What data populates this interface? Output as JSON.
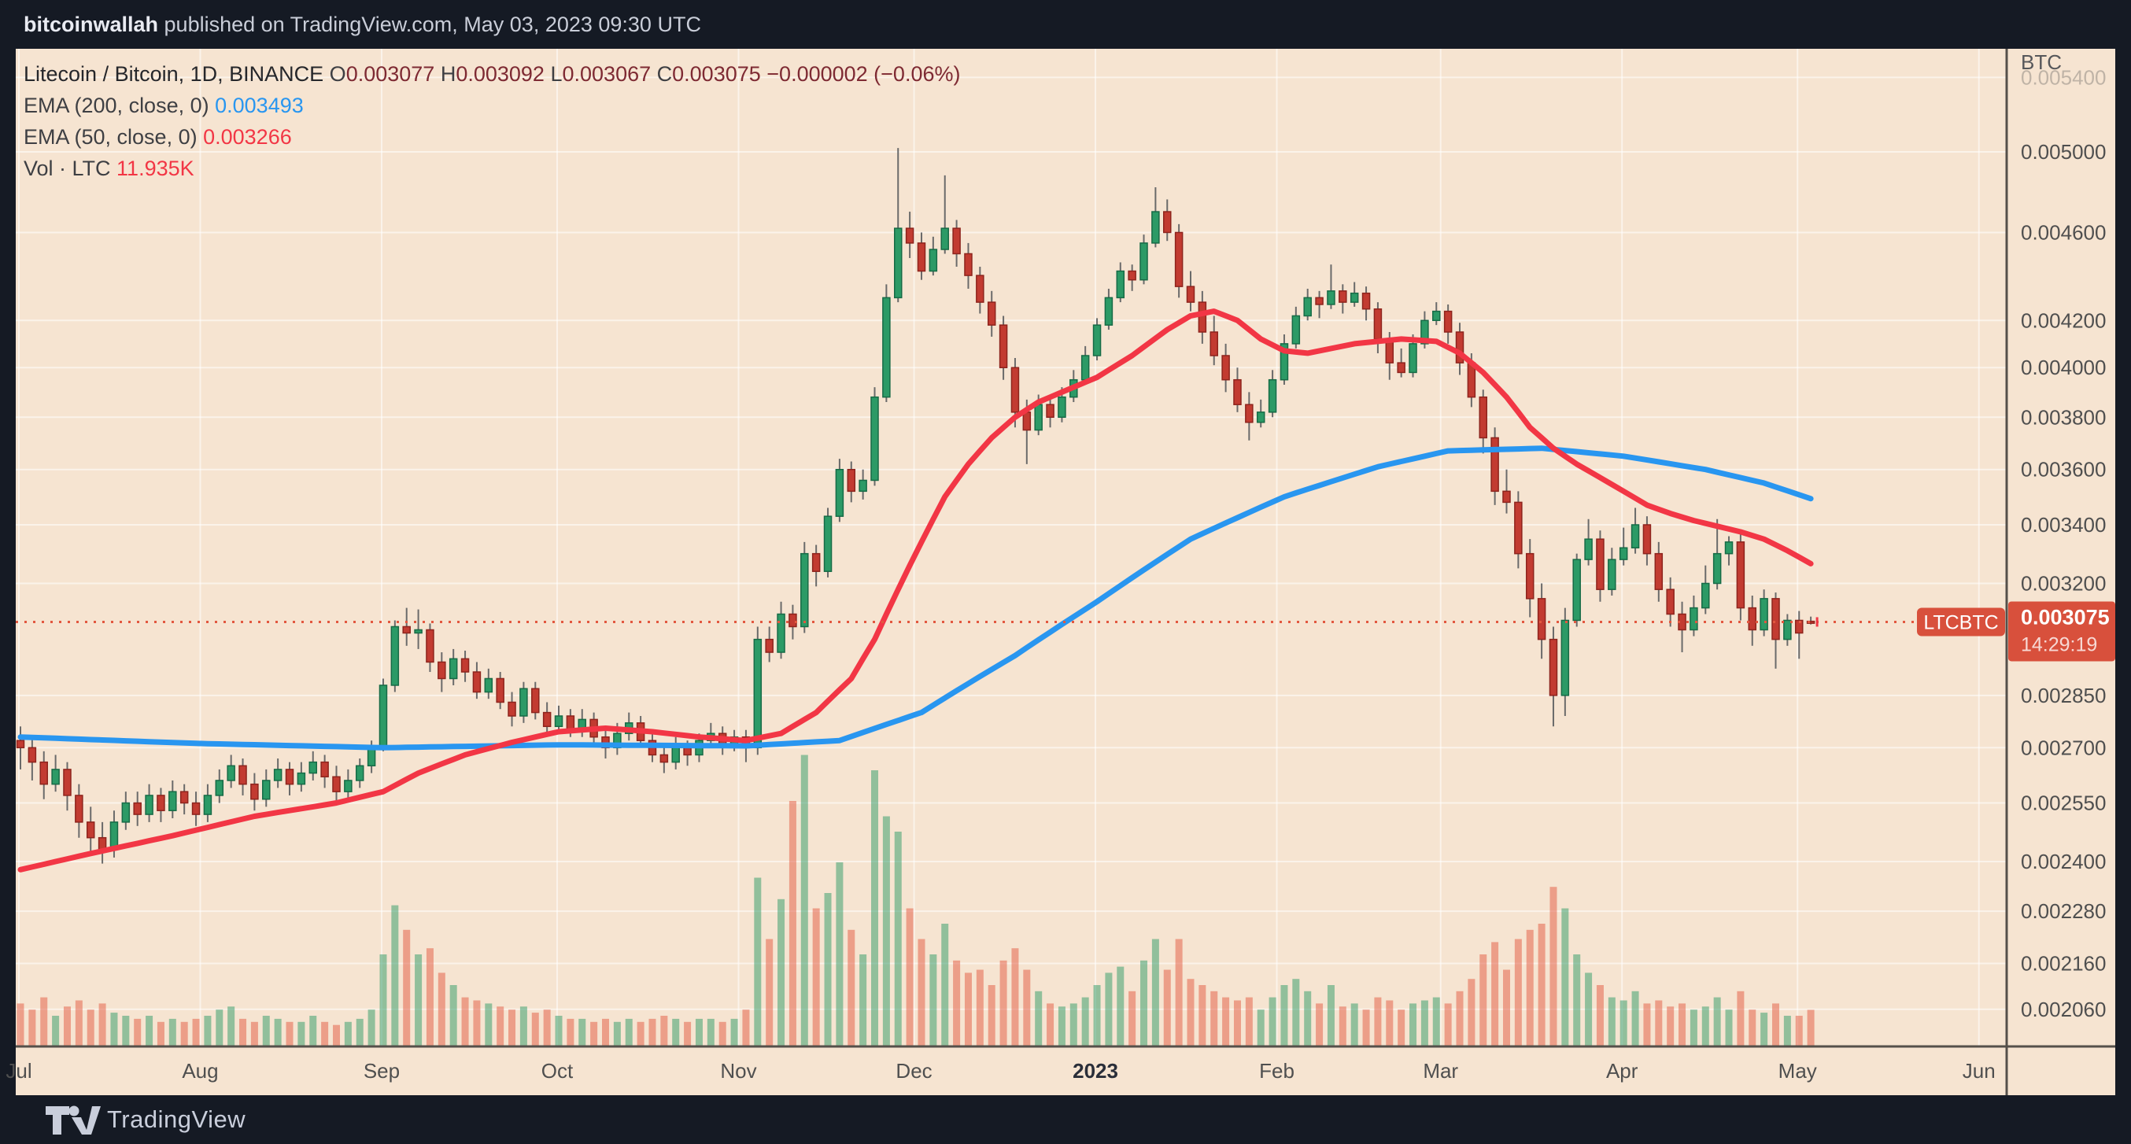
{
  "header": {
    "username": "bitcoinwallah",
    "rest": " published on TradingView.com, May 03, 2023 09:30 UTC"
  },
  "legend": {
    "title": "Litecoin / Bitcoin, 1D, BINANCE",
    "o_letter": "O",
    "o_value": "0.003077",
    "h_letter": "H",
    "h_value": "0.003092",
    "l_letter": "L",
    "l_value": "0.003067",
    "c_letter": "C",
    "c_value": "0.003075",
    "change": "−0.000002 (−0.06%)",
    "ema200_label": "EMA (200, close, 0)",
    "ema200_value": "0.003493",
    "ema50_label": "EMA (50, close, 0)",
    "ema50_value": "0.003266",
    "vol_label": "Vol · LTC",
    "vol_value": "11.935K"
  },
  "price_axis": {
    "currency": "BTC",
    "faded_top_tick": 5400,
    "ticks": [
      5000,
      4600,
      4200,
      4000,
      3800,
      3600,
      3400,
      3200,
      2850,
      2700,
      2550,
      2400,
      2280,
      2160,
      2060
    ]
  },
  "time_axis": {
    "months": [
      {
        "label": "Jul",
        "idx": 0,
        "year": false
      },
      {
        "label": "Aug",
        "idx": 15.5,
        "year": false
      },
      {
        "label": "Sep",
        "idx": 31,
        "year": false
      },
      {
        "label": "Oct",
        "idx": 46,
        "year": false
      },
      {
        "label": "Nov",
        "idx": 61.5,
        "year": false
      },
      {
        "label": "Dec",
        "idx": 76.5,
        "year": false
      },
      {
        "label": "2023",
        "idx": 92,
        "year": true
      },
      {
        "label": "Feb",
        "idx": 107.5,
        "year": false
      },
      {
        "label": "Mar",
        "idx": 121.5,
        "year": false
      },
      {
        "label": "Apr",
        "idx": 137,
        "year": false
      },
      {
        "label": "May",
        "idx": 152,
        "year": false
      },
      {
        "label": "Jun",
        "idx": 167.5,
        "year": false
      }
    ]
  },
  "price_line": {
    "symbol": "LTCBTC",
    "price_text": "0.003075",
    "countdown": "14:29:19",
    "value": 3075
  },
  "footer": {
    "brand": "TradingView"
  },
  "colors": {
    "bg_dark": "#151A24",
    "panel": "#F6E4D1",
    "grid": "rgba(255,255,255,0.55)",
    "up_fill": "#2C9A66",
    "up_border": "#176B46",
    "down_fill": "#C23B31",
    "down_border": "#8E241D",
    "wick": "#6A6A6A",
    "ema200": "#2996F0",
    "ema50": "#F23645",
    "vol_up": "rgba(44,154,102,0.5)",
    "vol_down": "rgba(226,87,63,0.5)",
    "price_line": "#E2573F",
    "badge": "#D8503C",
    "axis_text": "#4F4F4F",
    "axis_text_bold": "#2A2E39",
    "axis_line": "#55504A"
  },
  "chart_data": {
    "type": "candlestick",
    "symbol": "Litecoin / Bitcoin",
    "timeframe": "1D",
    "exchange": "BINANCE",
    "y_scale": "log",
    "note": "prices stored as BTC ×1e-6; each candle aggregates ~2 days, Jul 2022 → May 3 2023; volumes in K LTC",
    "ylim": [
      1982,
      5562
    ],
    "candles": [
      [
        2720,
        2760,
        2640,
        2700,
        14
      ],
      [
        2700,
        2730,
        2610,
        2660,
        12
      ],
      [
        2660,
        2690,
        2560,
        2600,
        16
      ],
      [
        2600,
        2680,
        2580,
        2640,
        10
      ],
      [
        2640,
        2660,
        2530,
        2570,
        13
      ],
      [
        2570,
        2600,
        2460,
        2500,
        15
      ],
      [
        2500,
        2540,
        2420,
        2460,
        12
      ],
      [
        2460,
        2500,
        2395,
        2430,
        14
      ],
      [
        2430,
        2530,
        2410,
        2500,
        11
      ],
      [
        2500,
        2580,
        2480,
        2550,
        10
      ],
      [
        2550,
        2580,
        2490,
        2520,
        9
      ],
      [
        2520,
        2600,
        2500,
        2570,
        10
      ],
      [
        2570,
        2590,
        2500,
        2530,
        8
      ],
      [
        2530,
        2610,
        2510,
        2580,
        9
      ],
      [
        2580,
        2600,
        2520,
        2550,
        8
      ],
      [
        2550,
        2580,
        2490,
        2520,
        9
      ],
      [
        2520,
        2600,
        2500,
        2570,
        10
      ],
      [
        2570,
        2640,
        2550,
        2610,
        12
      ],
      [
        2610,
        2680,
        2590,
        2650,
        13
      ],
      [
        2650,
        2670,
        2570,
        2600,
        9
      ],
      [
        2600,
        2630,
        2530,
        2560,
        8
      ],
      [
        2560,
        2640,
        2540,
        2610,
        10
      ],
      [
        2610,
        2670,
        2590,
        2640,
        9
      ],
      [
        2640,
        2660,
        2570,
        2600,
        8
      ],
      [
        2600,
        2660,
        2580,
        2630,
        8
      ],
      [
        2630,
        2690,
        2610,
        2660,
        10
      ],
      [
        2660,
        2680,
        2590,
        2620,
        8
      ],
      [
        2620,
        2650,
        2550,
        2580,
        7
      ],
      [
        2580,
        2640,
        2560,
        2610,
        8
      ],
      [
        2610,
        2670,
        2590,
        2650,
        9
      ],
      [
        2650,
        2720,
        2630,
        2700,
        12
      ],
      [
        2700,
        2900,
        2690,
        2880,
        30
      ],
      [
        2880,
        3080,
        2860,
        3060,
        46
      ],
      [
        3060,
        3120,
        3000,
        3040,
        38
      ],
      [
        3040,
        3115,
        2990,
        3050,
        30
      ],
      [
        3050,
        3070,
        2920,
        2950,
        32
      ],
      [
        2950,
        2980,
        2860,
        2900,
        24
      ],
      [
        2900,
        2990,
        2880,
        2960,
        20
      ],
      [
        2960,
        2985,
        2890,
        2920,
        16
      ],
      [
        2920,
        2950,
        2840,
        2860,
        15
      ],
      [
        2860,
        2930,
        2840,
        2900,
        14
      ],
      [
        2900,
        2920,
        2810,
        2830,
        13
      ],
      [
        2830,
        2860,
        2760,
        2790,
        12
      ],
      [
        2790,
        2890,
        2770,
        2870,
        13
      ],
      [
        2870,
        2890,
        2780,
        2800,
        11
      ],
      [
        2800,
        2830,
        2740,
        2760,
        12
      ],
      [
        2760,
        2820,
        2740,
        2790,
        10
      ],
      [
        2790,
        2810,
        2730,
        2750,
        9
      ],
      [
        2750,
        2810,
        2730,
        2780,
        9
      ],
      [
        2780,
        2800,
        2710,
        2730,
        8
      ],
      [
        2730,
        2760,
        2670,
        2700,
        9
      ],
      [
        2700,
        2770,
        2680,
        2740,
        8
      ],
      [
        2740,
        2800,
        2720,
        2770,
        9
      ],
      [
        2770,
        2790,
        2700,
        2720,
        8
      ],
      [
        2720,
        2750,
        2660,
        2680,
        9
      ],
      [
        2680,
        2710,
        2630,
        2660,
        10
      ],
      [
        2660,
        2730,
        2640,
        2700,
        9
      ],
      [
        2700,
        2720,
        2650,
        2680,
        8
      ],
      [
        2680,
        2740,
        2660,
        2720,
        9
      ],
      [
        2720,
        2770,
        2700,
        2740,
        9
      ],
      [
        2740,
        2760,
        2680,
        2710,
        8
      ],
      [
        2710,
        2750,
        2690,
        2730,
        9
      ],
      [
        2730,
        2750,
        2660,
        2700,
        12
      ],
      [
        2700,
        3060,
        2680,
        3020,
        55
      ],
      [
        3020,
        3060,
        2950,
        2980,
        35
      ],
      [
        2980,
        3140,
        2960,
        3100,
        48
      ],
      [
        3100,
        3130,
        3020,
        3060,
        80
      ],
      [
        3060,
        3340,
        3040,
        3300,
        95
      ],
      [
        3300,
        3330,
        3190,
        3240,
        45
      ],
      [
        3240,
        3460,
        3220,
        3430,
        50
      ],
      [
        3430,
        3640,
        3410,
        3600,
        60
      ],
      [
        3600,
        3630,
        3480,
        3520,
        38
      ],
      [
        3520,
        3600,
        3490,
        3560,
        30
      ],
      [
        3560,
        3920,
        3540,
        3880,
        90
      ],
      [
        3880,
        4360,
        3860,
        4300,
        75
      ],
      [
        4300,
        5020,
        4280,
        4620,
        70
      ],
      [
        4620,
        4700,
        4480,
        4550,
        45
      ],
      [
        4550,
        4600,
        4380,
        4420,
        35
      ],
      [
        4420,
        4580,
        4400,
        4520,
        30
      ],
      [
        4520,
        4880,
        4500,
        4620,
        40
      ],
      [
        4620,
        4660,
        4440,
        4500,
        28
      ],
      [
        4500,
        4550,
        4340,
        4400,
        24
      ],
      [
        4400,
        4440,
        4230,
        4280,
        25
      ],
      [
        4280,
        4330,
        4130,
        4180,
        20
      ],
      [
        4180,
        4220,
        3950,
        4000,
        28
      ],
      [
        4000,
        4040,
        3760,
        3820,
        32
      ],
      [
        3820,
        3870,
        3620,
        3750,
        25
      ],
      [
        3750,
        3890,
        3730,
        3850,
        18
      ],
      [
        3850,
        3880,
        3760,
        3800,
        14
      ],
      [
        3800,
        3920,
        3780,
        3880,
        13
      ],
      [
        3880,
        3990,
        3860,
        3950,
        14
      ],
      [
        3950,
        4090,
        3930,
        4050,
        16
      ],
      [
        4050,
        4210,
        4030,
        4180,
        20
      ],
      [
        4180,
        4340,
        4160,
        4300,
        24
      ],
      [
        4300,
        4460,
        4280,
        4420,
        26
      ],
      [
        4420,
        4450,
        4330,
        4380,
        18
      ],
      [
        4380,
        4590,
        4360,
        4550,
        28
      ],
      [
        4550,
        4820,
        4530,
        4700,
        35
      ],
      [
        4700,
        4760,
        4560,
        4600,
        25
      ],
      [
        4600,
        4640,
        4300,
        4350,
        35
      ],
      [
        4350,
        4420,
        4240,
        4280,
        22
      ],
      [
        4280,
        4330,
        4100,
        4150,
        20
      ],
      [
        4150,
        4220,
        4010,
        4050,
        18
      ],
      [
        4050,
        4100,
        3900,
        3950,
        16
      ],
      [
        3950,
        4000,
        3820,
        3850,
        15
      ],
      [
        3850,
        3900,
        3710,
        3780,
        16
      ],
      [
        3780,
        3870,
        3760,
        3820,
        12
      ],
      [
        3820,
        3990,
        3800,
        3950,
        16
      ],
      [
        3950,
        4140,
        3930,
        4100,
        20
      ],
      [
        4100,
        4260,
        4080,
        4220,
        22
      ],
      [
        4220,
        4340,
        4200,
        4300,
        18
      ],
      [
        4300,
        4330,
        4210,
        4270,
        14
      ],
      [
        4270,
        4450,
        4250,
        4330,
        20
      ],
      [
        4330,
        4360,
        4230,
        4280,
        13
      ],
      [
        4280,
        4370,
        4260,
        4320,
        14
      ],
      [
        4320,
        4350,
        4200,
        4250,
        12
      ],
      [
        4250,
        4280,
        4060,
        4120,
        16
      ],
      [
        4120,
        4150,
        3950,
        4020,
        15
      ],
      [
        4020,
        4080,
        3960,
        3980,
        12
      ],
      [
        3980,
        4140,
        3960,
        4100,
        14
      ],
      [
        4100,
        4240,
        4080,
        4200,
        15
      ],
      [
        4200,
        4280,
        4180,
        4240,
        16
      ],
      [
        4240,
        4270,
        4100,
        4150,
        14
      ],
      [
        4150,
        4190,
        3970,
        4020,
        18
      ],
      [
        4020,
        4060,
        3840,
        3880,
        22
      ],
      [
        3880,
        3910,
        3660,
        3720,
        30
      ],
      [
        3720,
        3760,
        3470,
        3520,
        34
      ],
      [
        3520,
        3600,
        3440,
        3480,
        25
      ],
      [
        3480,
        3520,
        3250,
        3300,
        35
      ],
      [
        3300,
        3350,
        3090,
        3150,
        38
      ],
      [
        3150,
        3200,
        2960,
        3020,
        40
      ],
      [
        3020,
        3060,
        2760,
        2850,
        52
      ],
      [
        2850,
        3120,
        2790,
        3080,
        45
      ],
      [
        3080,
        3300,
        3060,
        3280,
        30
      ],
      [
        3280,
        3420,
        3260,
        3350,
        24
      ],
      [
        3350,
        3380,
        3140,
        3180,
        20
      ],
      [
        3180,
        3320,
        3160,
        3280,
        16
      ],
      [
        3280,
        3390,
        3260,
        3320,
        15
      ],
      [
        3320,
        3460,
        3300,
        3400,
        18
      ],
      [
        3400,
        3430,
        3260,
        3300,
        14
      ],
      [
        3300,
        3340,
        3140,
        3180,
        15
      ],
      [
        3180,
        3220,
        3060,
        3100,
        13
      ],
      [
        3100,
        3140,
        2980,
        3050,
        14
      ],
      [
        3050,
        3160,
        3030,
        3120,
        12
      ],
      [
        3120,
        3260,
        3100,
        3200,
        13
      ],
      [
        3200,
        3420,
        3180,
        3300,
        16
      ],
      [
        3300,
        3360,
        3260,
        3340,
        12
      ],
      [
        3340,
        3370,
        3080,
        3120,
        18
      ],
      [
        3120,
        3160,
        3000,
        3050,
        12
      ],
      [
        3050,
        3180,
        3030,
        3150,
        11
      ],
      [
        3150,
        3170,
        2930,
        3020,
        14
      ],
      [
        3020,
        3100,
        3000,
        3080,
        10
      ],
      [
        3080,
        3110,
        2960,
        3040,
        10
      ],
      [
        3077,
        3092,
        3067,
        3075,
        11.935
      ]
    ],
    "ema200_anchors": [
      [
        0,
        2730
      ],
      [
        15,
        2712
      ],
      [
        31,
        2700
      ],
      [
        46,
        2708
      ],
      [
        62,
        2705
      ],
      [
        70,
        2720
      ],
      [
        77,
        2800
      ],
      [
        85,
        2970
      ],
      [
        92,
        3140
      ],
      [
        100,
        3350
      ],
      [
        108,
        3500
      ],
      [
        116,
        3610
      ],
      [
        122,
        3670
      ],
      [
        130,
        3680
      ],
      [
        137,
        3650
      ],
      [
        144,
        3600
      ],
      [
        149,
        3550
      ],
      [
        153,
        3493
      ]
    ],
    "ema50_anchors": [
      [
        0,
        2380
      ],
      [
        6,
        2420
      ],
      [
        13,
        2465
      ],
      [
        20,
        2515
      ],
      [
        27,
        2550
      ],
      [
        31,
        2580
      ],
      [
        34,
        2630
      ],
      [
        38,
        2680
      ],
      [
        42,
        2715
      ],
      [
        46,
        2745
      ],
      [
        50,
        2755
      ],
      [
        54,
        2745
      ],
      [
        58,
        2730
      ],
      [
        62,
        2720
      ],
      [
        65,
        2740
      ],
      [
        68,
        2800
      ],
      [
        71,
        2900
      ],
      [
        73,
        3020
      ],
      [
        75,
        3180
      ],
      [
        77,
        3340
      ],
      [
        79,
        3500
      ],
      [
        81,
        3620
      ],
      [
        83,
        3720
      ],
      [
        85,
        3800
      ],
      [
        87,
        3860
      ],
      [
        89,
        3900
      ],
      [
        92,
        3960
      ],
      [
        95,
        4050
      ],
      [
        98,
        4160
      ],
      [
        100,
        4220
      ],
      [
        102,
        4240
      ],
      [
        104,
        4200
      ],
      [
        106,
        4120
      ],
      [
        108,
        4070
      ],
      [
        110,
        4060
      ],
      [
        112,
        4080
      ],
      [
        114,
        4100
      ],
      [
        116,
        4110
      ],
      [
        118,
        4120
      ],
      [
        121,
        4110
      ],
      [
        123,
        4060
      ],
      [
        125,
        3980
      ],
      [
        127,
        3880
      ],
      [
        129,
        3760
      ],
      [
        131,
        3680
      ],
      [
        133,
        3620
      ],
      [
        135,
        3570
      ],
      [
        137,
        3520
      ],
      [
        139,
        3470
      ],
      [
        141,
        3440
      ],
      [
        143,
        3415
      ],
      [
        145,
        3395
      ],
      [
        147,
        3375
      ],
      [
        149,
        3350
      ],
      [
        151,
        3310
      ],
      [
        153,
        3266
      ]
    ],
    "last_price": 3075
  }
}
